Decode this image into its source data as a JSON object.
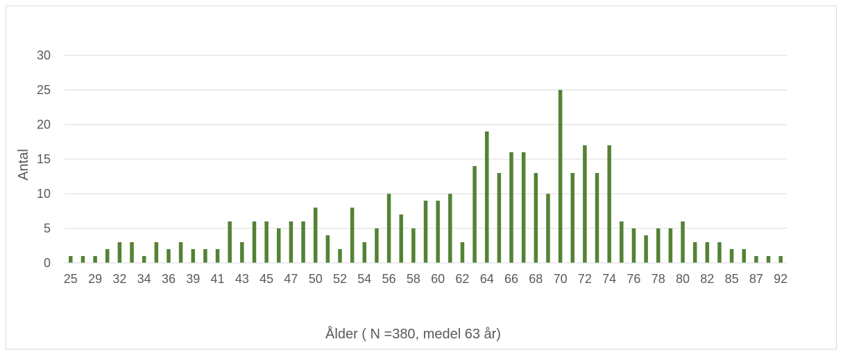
{
  "chart_data": {
    "type": "bar",
    "title": "",
    "xlabel": "Ålder ( N =380, medel 63 år)",
    "ylabel": "Antal",
    "ylim": [
      0,
      30
    ],
    "yticks": [
      0,
      5,
      10,
      15,
      20,
      25,
      30
    ],
    "grid": true,
    "legend": "none",
    "bar_color": "#548235",
    "categories": [
      "25",
      "27",
      "29",
      "31",
      "32",
      "33",
      "34",
      "35",
      "36",
      "37",
      "39",
      "40",
      "41",
      "42",
      "43",
      "44",
      "45",
      "46",
      "47",
      "49",
      "50",
      "51",
      "52",
      "53",
      "54",
      "55",
      "56",
      "57",
      "58",
      "59",
      "60",
      "61",
      "62",
      "63",
      "64",
      "65",
      "66",
      "67",
      "68",
      "69",
      "70",
      "71",
      "72",
      "73",
      "74",
      "75",
      "76",
      "77",
      "78",
      "79",
      "80",
      "81",
      "82",
      "83",
      "85",
      "86",
      "87",
      "88",
      "92"
    ],
    "visible_tick_labels": [
      "25",
      "29",
      "32",
      "34",
      "36",
      "39",
      "41",
      "43",
      "45",
      "47",
      "50",
      "52",
      "54",
      "56",
      "58",
      "60",
      "62",
      "64",
      "66",
      "68",
      "70",
      "72",
      "74",
      "76",
      "78",
      "80",
      "82",
      "85",
      "87",
      "92"
    ],
    "values": [
      1,
      1,
      1,
      2,
      3,
      3,
      1,
      3,
      2,
      3,
      2,
      2,
      2,
      6,
      3,
      6,
      6,
      5,
      6,
      6,
      8,
      4,
      2,
      8,
      3,
      5,
      10,
      7,
      5,
      9,
      9,
      10,
      3,
      14,
      19,
      13,
      16,
      16,
      13,
      10,
      25,
      13,
      17,
      13,
      17,
      6,
      5,
      4,
      5,
      5,
      6,
      3,
      3,
      3,
      2,
      2,
      1,
      1,
      1
    ]
  }
}
